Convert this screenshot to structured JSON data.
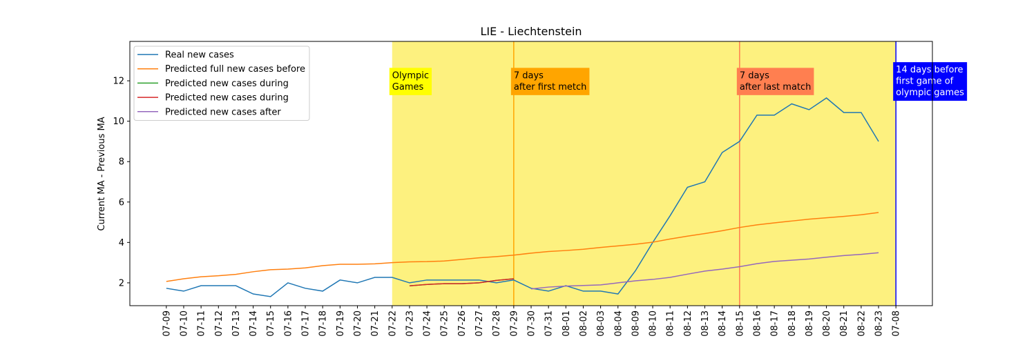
{
  "chart_data": {
    "type": "line",
    "title": "LIE - Liechtenstein",
    "y_label": "Current MA - Previous MA",
    "categories": [
      "07-09",
      "07-10",
      "07-11",
      "07-12",
      "07-13",
      "07-14",
      "07-15",
      "07-16",
      "07-17",
      "07-18",
      "07-19",
      "07-20",
      "07-21",
      "07-22",
      "07-23",
      "07-24",
      "07-25",
      "07-26",
      "07-27",
      "07-28",
      "07-29",
      "07-30",
      "07-31",
      "08-01",
      "08-02",
      "08-03",
      "08-04",
      "08-09",
      "08-10",
      "08-11",
      "08-12",
      "08-13",
      "08-14",
      "08-15",
      "08-16",
      "08-17",
      "08-18",
      "08-19",
      "08-20",
      "08-21",
      "08-22",
      "08-23",
      "07-08"
    ],
    "series": [
      {
        "name": "Real new cases",
        "color": "#1f77b4",
        "values": [
          1.73,
          1.59,
          1.86,
          1.86,
          1.86,
          1.45,
          1.32,
          2.0,
          1.73,
          1.59,
          2.14,
          2.0,
          2.27,
          2.27,
          2.0,
          2.14,
          2.14,
          2.14,
          2.14,
          2.0,
          2.14,
          1.73,
          1.59,
          1.86,
          1.59,
          1.59,
          1.45,
          2.59,
          4.0,
          5.32,
          6.73,
          7.0,
          8.45,
          9.0,
          10.3,
          10.3,
          10.86,
          10.57,
          11.15,
          10.43,
          10.43,
          9.0,
          null
        ]
      },
      {
        "name": "Predicted full new cases before",
        "color": "#ff7f0e",
        "values": [
          2.07,
          2.2,
          2.3,
          2.35,
          2.42,
          2.55,
          2.65,
          2.68,
          2.74,
          2.85,
          2.92,
          2.92,
          2.94,
          3.0,
          3.04,
          3.05,
          3.08,
          3.16,
          3.24,
          3.3,
          3.37,
          3.47,
          3.55,
          3.6,
          3.66,
          3.75,
          3.83,
          3.91,
          4.01,
          4.17,
          4.31,
          4.44,
          4.58,
          4.74,
          4.87,
          4.97,
          5.06,
          5.15,
          5.22,
          5.29,
          5.37,
          5.48,
          null
        ]
      },
      {
        "name": "Predicted new cases during",
        "color": "#2ca02c",
        "values": [
          null,
          null,
          null,
          null,
          null,
          null,
          null,
          null,
          null,
          null,
          null,
          null,
          null,
          null,
          1.85,
          1.92,
          1.96,
          1.96,
          2.0,
          2.12,
          2.2,
          null,
          null,
          null,
          null,
          null,
          null,
          null,
          null,
          null,
          null,
          null,
          null,
          null,
          null,
          null,
          null,
          null,
          null,
          null,
          null,
          null,
          null
        ]
      },
      {
        "name": "Predicted new cases during",
        "color": "#d62728",
        "values": [
          null,
          null,
          null,
          null,
          null,
          null,
          null,
          null,
          null,
          null,
          null,
          null,
          null,
          null,
          1.85,
          1.92,
          1.96,
          1.96,
          2.0,
          2.12,
          2.2,
          null,
          null,
          null,
          null,
          null,
          null,
          null,
          null,
          null,
          null,
          null,
          null,
          null,
          null,
          null,
          null,
          null,
          null,
          null,
          null,
          null,
          null
        ]
      },
      {
        "name": "Predicted new cases after",
        "color": "#9467bd",
        "values": [
          null,
          null,
          null,
          null,
          null,
          null,
          null,
          null,
          null,
          null,
          null,
          null,
          null,
          null,
          null,
          null,
          null,
          null,
          null,
          null,
          null,
          1.7,
          1.79,
          1.84,
          1.87,
          1.9,
          2.0,
          2.1,
          2.17,
          2.27,
          2.43,
          2.58,
          2.68,
          2.8,
          2.95,
          3.06,
          3.12,
          3.18,
          3.27,
          3.35,
          3.41,
          3.49,
          null
        ]
      }
    ],
    "ylim": [
      0.87,
      13.95
    ],
    "yticks": [
      2,
      4,
      6,
      8,
      10,
      12
    ],
    "legend": "upper left",
    "span": {
      "from": "07-22",
      "to": "07-08",
      "color": "#fdf17f"
    },
    "annotations": [
      {
        "category": "07-22",
        "y": 12,
        "text": [
          "Olympic",
          "Games"
        ],
        "box_color": "#ffff00",
        "text_color": "#000000"
      },
      {
        "category": "07-29",
        "y": 12,
        "text": [
          "7 days",
          "after first metch"
        ],
        "box_color": "#ffa500",
        "text_color": "#000000",
        "line_color": "#ffa500"
      },
      {
        "category": "08-15",
        "y": 12,
        "text": [
          "7 days",
          "after last match"
        ],
        "box_color": "#ff7f50",
        "text_color": "#000000",
        "line_color": "#ff7f50"
      },
      {
        "category": "07-08",
        "y": 12,
        "text": [
          "14 days before",
          "first game of",
          "olympic games"
        ],
        "box_color": "#0000ff",
        "text_color": "#ffffff",
        "line_color": "#0000ff"
      }
    ]
  }
}
